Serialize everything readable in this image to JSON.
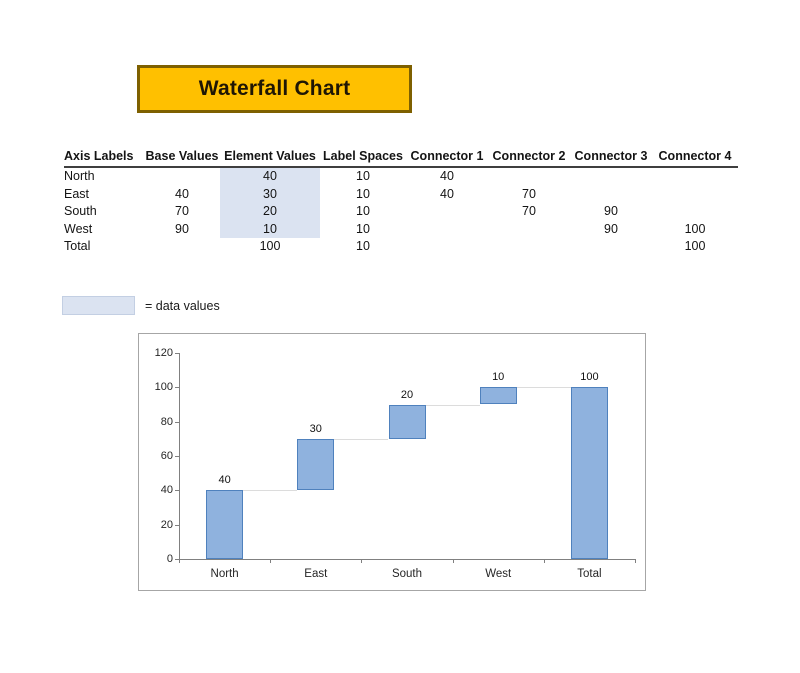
{
  "banner": {
    "title": "Waterfall Chart",
    "fill": "#FFC000",
    "border_color": "#7E6000",
    "text_color": "#1F1604"
  },
  "table": {
    "headers": [
      "Axis Labels",
      "Base Values",
      "Element Values",
      "Label Spaces",
      "Connector 1",
      "Connector 2",
      "Connector 3",
      "Connector 4"
    ],
    "rows": [
      [
        "North",
        "",
        "40",
        "10",
        "40",
        "",
        "",
        ""
      ],
      [
        "East",
        "40",
        "30",
        "10",
        "40",
        "70",
        "",
        ""
      ],
      [
        "South",
        "70",
        "20",
        "10",
        "",
        "70",
        "90",
        ""
      ],
      [
        "West",
        "90",
        "10",
        "10",
        "",
        "",
        "90",
        "100"
      ],
      [
        "Total",
        "",
        "100",
        "10",
        "",
        "",
        "",
        "100"
      ]
    ],
    "highlight": {
      "column_index": 2,
      "row_indices": [
        0,
        1,
        2,
        3
      ],
      "fill": "#DBE3F1"
    }
  },
  "legend": {
    "label": "= data values",
    "swatch_fill": "#DBE3F1"
  },
  "chart_data": {
    "type": "bar",
    "subtype": "waterfall",
    "title": "",
    "xlabel": "",
    "ylabel": "",
    "categories": [
      "North",
      "East",
      "South",
      "West",
      "Total"
    ],
    "series": [
      {
        "name": "Base Values",
        "values": [
          0,
          40,
          70,
          90,
          0
        ]
      },
      {
        "name": "Element Values",
        "values": [
          40,
          30,
          20,
          10,
          100
        ]
      }
    ],
    "bar_labels": [
      "40",
      "30",
      "20",
      "10",
      "100"
    ],
    "connector_levels": [
      40,
      70,
      90,
      100
    ],
    "y_ticks": [
      0,
      20,
      40,
      60,
      80,
      100,
      120
    ],
    "ylim": [
      0,
      120
    ],
    "grid": false,
    "legend_position": "none",
    "bar_fill": "#8FB2DE",
    "bar_border": "#4F81BD",
    "connector_color": "#DCDCDC",
    "axis_color": "#808080",
    "tick_label_color": "#262626"
  }
}
